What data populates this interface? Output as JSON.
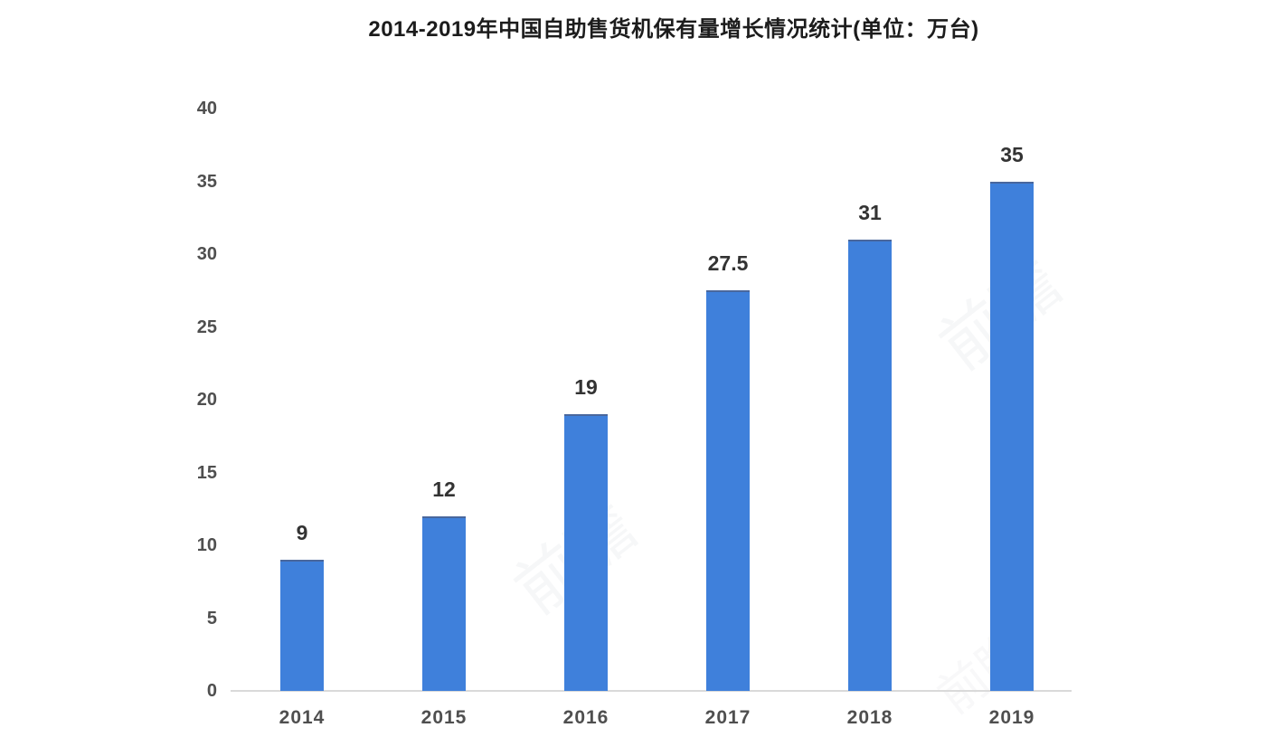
{
  "chart_data": {
    "type": "bar",
    "title": "2014-2019年中国自助售货机保有量增长情况统计(单位：万台)",
    "categories": [
      "2014",
      "2015",
      "2016",
      "2017",
      "2018",
      "2019"
    ],
    "values": [
      9,
      12,
      19,
      27.5,
      31,
      35
    ],
    "data_labels": [
      "9",
      "12",
      "19",
      "27.5",
      "31",
      "35"
    ],
    "series_name": "自助售货机保有量",
    "unit_label": "万台",
    "xlabel": "",
    "ylabel": "",
    "ylim": [
      0,
      40
    ],
    "yticks": [
      0,
      5,
      10,
      15,
      20,
      25,
      30,
      35,
      40
    ],
    "grid": false,
    "legend_position": "none",
    "bar_color": "#3F80DB",
    "bar_top_edge_color": "#49679D",
    "axis_line_color": "#D9D9D9",
    "title_color": "#1C1C1C",
    "tick_label_color": "#4F4F4F",
    "value_label_color": "#333333",
    "background_color": "#FFFFFF",
    "watermark_text": "前瞻"
  }
}
